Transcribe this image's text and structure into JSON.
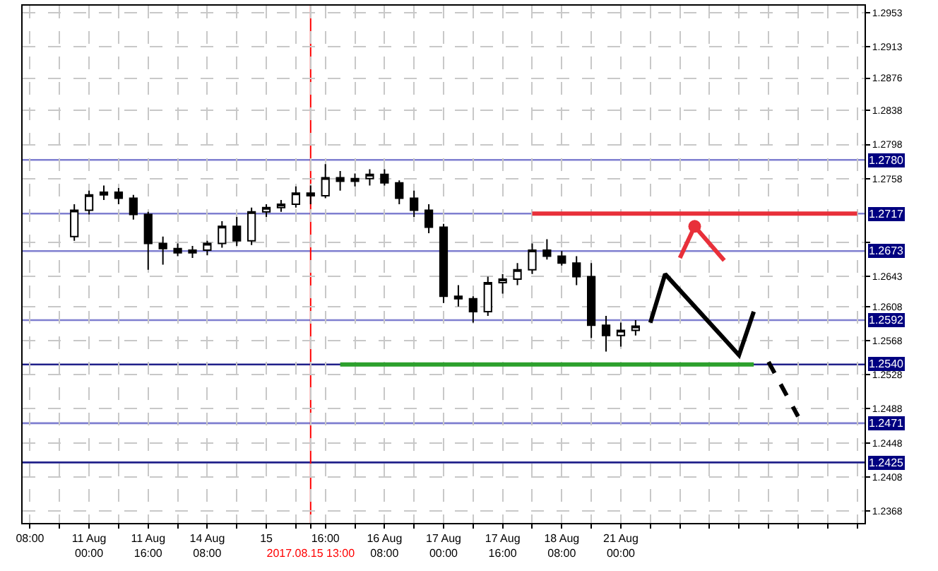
{
  "chart_data": {
    "type": "candlestick",
    "categories": [
      "08:00",
      null,
      null,
      null,
      "11 Aug 00:00",
      null,
      null,
      null,
      "11 Aug 16:00",
      null,
      null,
      null,
      "14 Aug 08:00",
      null,
      null,
      null,
      "15",
      null,
      null,
      "2017.08.15 13:00",
      "16:00",
      null,
      null,
      null,
      "16 Aug 08:00",
      null,
      null,
      null,
      "17 Aug 00:00",
      null,
      null,
      null,
      "17 Aug 16:00",
      null,
      null,
      null,
      "18 Aug 08:00",
      null,
      null,
      null,
      "21 Aug 00:00",
      null,
      null,
      null,
      null,
      null,
      null,
      null,
      null,
      null,
      null,
      null,
      null,
      null,
      null,
      null,
      null
    ],
    "ohlc": [
      null,
      null,
      null,
      [
        1.269,
        1.2728,
        1.2685,
        1.2721
      ],
      [
        1.2721,
        1.2744,
        1.2716,
        1.2739
      ],
      [
        1.2739,
        1.275,
        1.2733,
        1.2742
      ],
      [
        1.2742,
        1.2747,
        1.2728,
        1.2735
      ],
      [
        1.2735,
        1.2739,
        1.271,
        1.2716
      ],
      [
        1.2716,
        1.2719,
        1.2651,
        1.2682
      ],
      [
        1.2682,
        1.269,
        1.2657,
        1.2676
      ],
      [
        1.2676,
        1.2682,
        1.2667,
        1.2671
      ],
      [
        1.2671,
        1.2679,
        1.2665,
        1.2674
      ],
      [
        1.2674,
        1.2685,
        1.2668,
        1.2682
      ],
      [
        1.2682,
        1.2708,
        1.2677,
        1.2702
      ],
      [
        1.2702,
        1.2713,
        1.2679,
        1.2685
      ],
      [
        1.2685,
        1.2724,
        1.268,
        1.2719
      ],
      [
        1.2719,
        1.2728,
        1.2713,
        1.2724
      ],
      [
        1.2724,
        1.2733,
        1.2719,
        1.2728
      ],
      [
        1.2728,
        1.2749,
        1.2724,
        1.2741
      ],
      [
        1.2741,
        1.275,
        1.2728,
        1.2738
      ],
      [
        1.2738,
        1.2775,
        1.2735,
        1.2759
      ],
      [
        1.2759,
        1.2767,
        1.2744,
        1.2755
      ],
      [
        1.2755,
        1.2764,
        1.2749,
        1.2758
      ],
      [
        1.2758,
        1.2769,
        1.275,
        1.2763
      ],
      [
        1.2763,
        1.2769,
        1.275,
        1.2753
      ],
      [
        1.2753,
        1.2756,
        1.2728,
        1.2735
      ],
      [
        1.2735,
        1.2744,
        1.2713,
        1.2721
      ],
      [
        1.2721,
        1.2728,
        1.2694,
        1.2701
      ],
      [
        1.2701,
        1.2705,
        1.2612,
        1.262
      ],
      [
        1.262,
        1.2633,
        1.2608,
        1.2617
      ],
      [
        1.2617,
        1.262,
        1.2589,
        1.2602
      ],
      [
        1.2602,
        1.2643,
        1.2597,
        1.2636
      ],
      [
        1.2636,
        1.2646,
        1.2623,
        1.264
      ],
      [
        1.264,
        1.2659,
        1.2633,
        1.2651
      ],
      [
        1.2651,
        1.2682,
        1.2646,
        1.2674
      ],
      [
        1.2674,
        1.2687,
        1.2663,
        1.2667
      ],
      [
        1.2667,
        1.2673,
        1.2656,
        1.2659
      ],
      [
        1.2659,
        1.2667,
        1.2633,
        1.2643
      ],
      [
        1.2643,
        1.2659,
        1.2571,
        1.2586
      ],
      [
        1.2586,
        1.2597,
        1.2555,
        1.2574
      ],
      [
        1.2574,
        1.2589,
        1.2561,
        1.258
      ],
      [
        1.258,
        1.2592,
        1.2574,
        1.2585
      ],
      null,
      null,
      null,
      null,
      null,
      null,
      null,
      null,
      null,
      null,
      null,
      null,
      null,
      null,
      null
    ],
    "color": "#000000",
    "series": [
      {
        "type": "line",
        "color": "#e8303a",
        "marker": "none",
        "values": [
          null,
          null,
          null,
          null,
          null,
          null,
          null,
          null,
          null,
          null,
          null,
          null,
          null,
          null,
          null,
          null,
          null,
          null,
          null,
          null,
          null,
          null,
          null,
          null,
          null,
          null,
          null,
          null,
          null,
          null,
          null,
          null,
          null,
          null,
          1.2717,
          1.2717,
          1.2717,
          1.2717,
          1.2717,
          1.2717,
          1.2717,
          1.2717,
          1.2717,
          1.2717,
          1.2717,
          1.2717,
          1.2717,
          1.2717,
          1.2717,
          1.2717,
          1.2717,
          1.2717,
          1.2717,
          1.2717,
          1.2717,
          1.2717,
          1.2717
        ]
      },
      {
        "type": "line",
        "color": "#2ca02c",
        "marker": "none",
        "values": [
          null,
          null,
          null,
          null,
          null,
          null,
          null,
          null,
          null,
          null,
          null,
          null,
          null,
          null,
          null,
          null,
          null,
          null,
          null,
          null,
          null,
          1.254,
          1.254,
          1.254,
          1.254,
          1.254,
          1.254,
          1.254,
          1.254,
          1.254,
          1.254,
          1.254,
          1.254,
          1.254,
          1.254,
          1.254,
          1.254,
          1.254,
          1.254,
          1.254,
          1.254,
          1.254,
          1.254,
          1.254,
          1.254,
          1.254,
          1.254,
          1.254,
          1.254,
          1.254,
          null,
          null,
          null,
          null,
          null,
          null,
          null
        ]
      },
      {
        "type": "line",
        "color": "#000000",
        "marker": "none",
        "line_style": "solid",
        "values": [
          null,
          null,
          null,
          null,
          null,
          null,
          null,
          null,
          null,
          null,
          null,
          null,
          null,
          null,
          null,
          null,
          null,
          null,
          null,
          null,
          null,
          null,
          null,
          null,
          null,
          null,
          null,
          null,
          null,
          null,
          null,
          null,
          null,
          null,
          null,
          null,
          null,
          null,
          null,
          null,
          null,
          null,
          1.2589,
          1.2646,
          null,
          null,
          null,
          null,
          1.2551,
          1.2602,
          null,
          null,
          null,
          null,
          null,
          null,
          null
        ]
      },
      {
        "type": "line",
        "color": "#e8303a",
        "marker": "none",
        "line_style": "solid",
        "values": [
          null,
          null,
          null,
          null,
          null,
          null,
          null,
          null,
          null,
          null,
          null,
          null,
          null,
          null,
          null,
          null,
          null,
          null,
          null,
          null,
          null,
          null,
          null,
          null,
          null,
          null,
          null,
          null,
          null,
          null,
          null,
          null,
          null,
          null,
          null,
          null,
          null,
          null,
          null,
          null,
          null,
          null,
          null,
          null,
          1.2665,
          1.2702,
          null,
          1.2662,
          null,
          null,
          null,
          null,
          null,
          null,
          null,
          null,
          null
        ]
      },
      {
        "type": "scatter",
        "color": "#e8303a",
        "marker": "circle",
        "values": [
          null,
          null,
          null,
          null,
          null,
          null,
          null,
          null,
          null,
          null,
          null,
          null,
          null,
          null,
          null,
          null,
          null,
          null,
          null,
          null,
          null,
          null,
          null,
          null,
          null,
          null,
          null,
          null,
          null,
          null,
          null,
          null,
          null,
          null,
          null,
          null,
          null,
          null,
          null,
          null,
          null,
          null,
          null,
          null,
          null,
          1.2702,
          null,
          null,
          null,
          null,
          null,
          null,
          null,
          null,
          null,
          null,
          null
        ]
      },
      {
        "type": "line",
        "color": "#000000",
        "marker": "none",
        "line_style": "dashed",
        "values": [
          null,
          null,
          null,
          null,
          null,
          null,
          null,
          null,
          null,
          null,
          null,
          null,
          null,
          null,
          null,
          null,
          null,
          null,
          null,
          null,
          null,
          null,
          null,
          null,
          null,
          null,
          null,
          null,
          null,
          null,
          null,
          null,
          null,
          null,
          null,
          null,
          null,
          null,
          null,
          null,
          null,
          null,
          null,
          null,
          null,
          null,
          null,
          null,
          null,
          null,
          1.2543,
          null,
          1.2479,
          null,
          null,
          null,
          null
        ]
      }
    ],
    "ylim": [
      1.2354,
      1.2961
    ],
    "yticks": [
      1.2953,
      1.2913,
      1.2876,
      1.2838,
      1.2798,
      1.2758,
      {
        "value": 1.2683,
        "label": null
      },
      1.2643,
      1.2608,
      1.2568,
      1.2528,
      1.2488,
      1.2448,
      1.2408,
      1.2368
    ],
    "ref_lines": [
      {
        "axis": "y",
        "value": 1.278,
        "label": "1.2780",
        "color": "#7f7fd0"
      },
      {
        "axis": "y",
        "value": 1.2717,
        "label": "1.2717",
        "color": "#7f7fd0"
      },
      {
        "axis": "y",
        "value": 1.2673,
        "label": "1.2673",
        "color": "#7f7fd0"
      },
      {
        "axis": "y",
        "value": 1.2592,
        "label": "1.2592",
        "color": "#7f7fd0"
      },
      {
        "axis": "y",
        "value": 1.254,
        "label": "1.2540",
        "color": "#20208a"
      },
      {
        "axis": "y",
        "value": 1.2471,
        "label": "1.2471",
        "color": "#7f7fd0"
      },
      {
        "axis": "y",
        "value": 1.2425,
        "label": "1.2425",
        "color": "#20208a"
      },
      {
        "axis": "x",
        "value": "2017.08.15 13:00",
        "color": "#ff0000"
      }
    ],
    "grid": true
  }
}
